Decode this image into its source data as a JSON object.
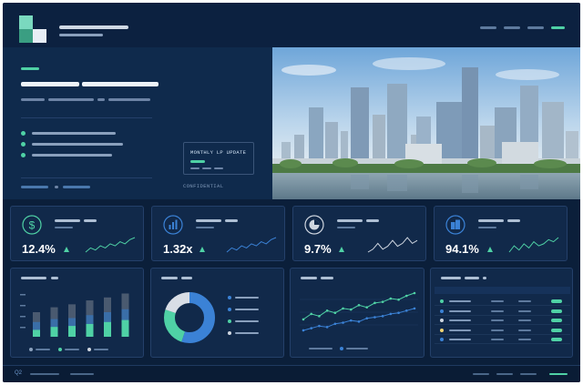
{
  "hero": {
    "update_box_title": "MONTHLY LP UPDATE",
    "confidential_label": "CONFIDENTIAL"
  },
  "kpis": [
    {
      "value": "12.4%",
      "icon": "dollar-circle-icon",
      "trend": "up",
      "spark": [
        4,
        6,
        5,
        7,
        6,
        8,
        7,
        9,
        8,
        10,
        11
      ]
    },
    {
      "value": "1.32x",
      "icon": "bar-chart-icon",
      "trend": "up",
      "spark": [
        3,
        5,
        4,
        6,
        5,
        7,
        6,
        8,
        7,
        9,
        10
      ]
    },
    {
      "value": "9.7%",
      "icon": "pie-chart-icon",
      "trend": "up",
      "spark": [
        4,
        5,
        7,
        5,
        6,
        8,
        6,
        7,
        9,
        7,
        8
      ]
    },
    {
      "value": "94.1%",
      "icon": "building-icon",
      "trend": "up",
      "spark": [
        3,
        6,
        4,
        7,
        5,
        8,
        6,
        7,
        9,
        8,
        10
      ]
    }
  ],
  "bar_panel": {
    "colors": {
      "base": "#4a5a70",
      "mid": "#3a6ea8",
      "top": "#4fd1a5"
    },
    "bars": [
      {
        "total": 0.5,
        "mid": 0.3,
        "top": 0.14
      },
      {
        "total": 0.6,
        "mid": 0.36,
        "top": 0.2
      },
      {
        "total": 0.66,
        "mid": 0.38,
        "top": 0.22
      },
      {
        "total": 0.74,
        "mid": 0.44,
        "top": 0.26
      },
      {
        "total": 0.8,
        "mid": 0.5,
        "top": 0.3
      },
      {
        "total": 0.88,
        "mid": 0.56,
        "top": 0.34
      }
    ]
  },
  "donut_panel": {
    "slices": [
      {
        "share": 0.55,
        "color": "#3b82d6"
      },
      {
        "share": 0.25,
        "color": "#4fd1a5"
      },
      {
        "share": 0.2,
        "color": "#d9dee6"
      }
    ]
  },
  "line_panel": {
    "series": [
      {
        "color": "#4fd1a5",
        "values": [
          3,
          4,
          3.6,
          4.6,
          4.2,
          5,
          4.8,
          5.6,
          5.2,
          6,
          6.2,
          6.8,
          6.6,
          7.3,
          7.8
        ]
      },
      {
        "color": "#3b82d6",
        "values": [
          1,
          1.4,
          1.8,
          1.6,
          2.2,
          2.4,
          2.8,
          2.6,
          3.2,
          3.4,
          3.6,
          4.0,
          4.2,
          4.6,
          5.0
        ]
      }
    ]
  },
  "table_panel": {
    "row_dots": [
      "#4fd1a5",
      "#3b82d6",
      "#cfd6e0",
      "#f2d472",
      "#3b82d6"
    ]
  },
  "footer": {
    "quarter": "Q2"
  }
}
